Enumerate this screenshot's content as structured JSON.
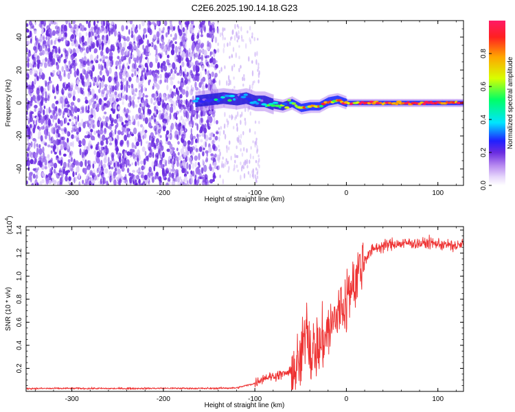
{
  "title": "C2E6.2025.190.14.18.G23",
  "chart_data": [
    {
      "type": "heatmap",
      "xlabel": "Height of straight line (km)",
      "ylabel": "Frequency (Hz)",
      "xlim": [
        -350,
        128
      ],
      "ylim": [
        -50,
        50
      ],
      "xticks": [
        -300,
        -200,
        -100,
        0,
        100
      ],
      "yticks": [
        -40,
        -20,
        0,
        20,
        40
      ],
      "colorbar": {
        "label": "Normalized spectral amplitude",
        "range": [
          0.0,
          1.0
        ],
        "ticks": [
          "0.0",
          "0.2",
          "0.4",
          "0.6",
          "0.8"
        ],
        "colormap": [
          "#ffffff",
          "#c9a8f5",
          "#7b3fe6",
          "#2020ff",
          "#00e5ff",
          "#00ff66",
          "#d8ff00",
          "#ffa500",
          "#ff2020",
          "#ff1a66"
        ]
      },
      "noise_region": {
        "x": [
          -350,
          -140
        ],
        "y": [
          -50,
          50
        ],
        "amplitude": 0.2
      },
      "signal_track": {
        "x": [
          -165,
          -150,
          -135,
          -120,
          -110,
          -100,
          -90,
          -80,
          -70,
          -60,
          -50,
          -40,
          -30,
          -20,
          -10,
          0,
          20,
          40,
          60,
          80,
          100,
          128
        ],
        "frequency": [
          1,
          2,
          3,
          2,
          3,
          1,
          1,
          -1,
          -2,
          0,
          -3,
          -2,
          -2,
          1,
          2,
          0,
          0,
          0,
          0,
          0,
          0,
          0
        ],
        "amplitude": [
          0.3,
          0.35,
          0.4,
          0.35,
          0.45,
          0.4,
          0.45,
          0.5,
          0.55,
          0.55,
          0.6,
          0.7,
          0.75,
          0.8,
          0.85,
          0.9,
          0.9,
          0.92,
          0.93,
          0.93,
          0.95,
          0.95
        ]
      }
    },
    {
      "type": "line",
      "xlabel": "Height of straight line (km)",
      "ylabel": "SNR (10 * v/v)",
      "y_multiplier": "(x10 4 )",
      "multiplier_base": "(x10",
      "multiplier_exp": "4",
      "multiplier_close": ")",
      "xlim": [
        -350,
        128
      ],
      "ylim": [
        0,
        14300
      ],
      "xticks": [
        -300,
        -200,
        -100,
        0,
        100
      ],
      "yticks": [
        "0.2",
        "0.4",
        "0.6",
        "0.8",
        "1.0",
        "1.2",
        "1.4"
      ],
      "ytick_values": [
        2000,
        4000,
        6000,
        8000,
        10000,
        12000,
        14000
      ],
      "color": "#ee3333",
      "series": [
        {
          "x": [
            -350,
            -300,
            -250,
            -200,
            -150,
            -120,
            -100,
            -90,
            -80,
            -70,
            -60,
            -55,
            -50,
            -47,
            -45,
            -43,
            -40,
            -38,
            -35,
            -30,
            -25,
            -20,
            -15,
            -10,
            -5,
            0,
            5,
            10,
            15,
            20,
            30,
            40,
            50,
            60,
            70,
            80,
            90,
            100,
            110,
            120,
            128
          ],
          "y": [
            250,
            260,
            250,
            270,
            260,
            300,
            700,
            1200,
            1300,
            1500,
            1700,
            1900,
            2600,
            3800,
            4500,
            6500,
            3800,
            3200,
            3900,
            3800,
            4500,
            5300,
            5800,
            6600,
            7200,
            7700,
            8700,
            9800,
            10700,
            11500,
            12400,
            12600,
            12800,
            12800,
            12900,
            12800,
            12900,
            12800,
            12700,
            12600,
            12800
          ]
        }
      ]
    }
  ]
}
